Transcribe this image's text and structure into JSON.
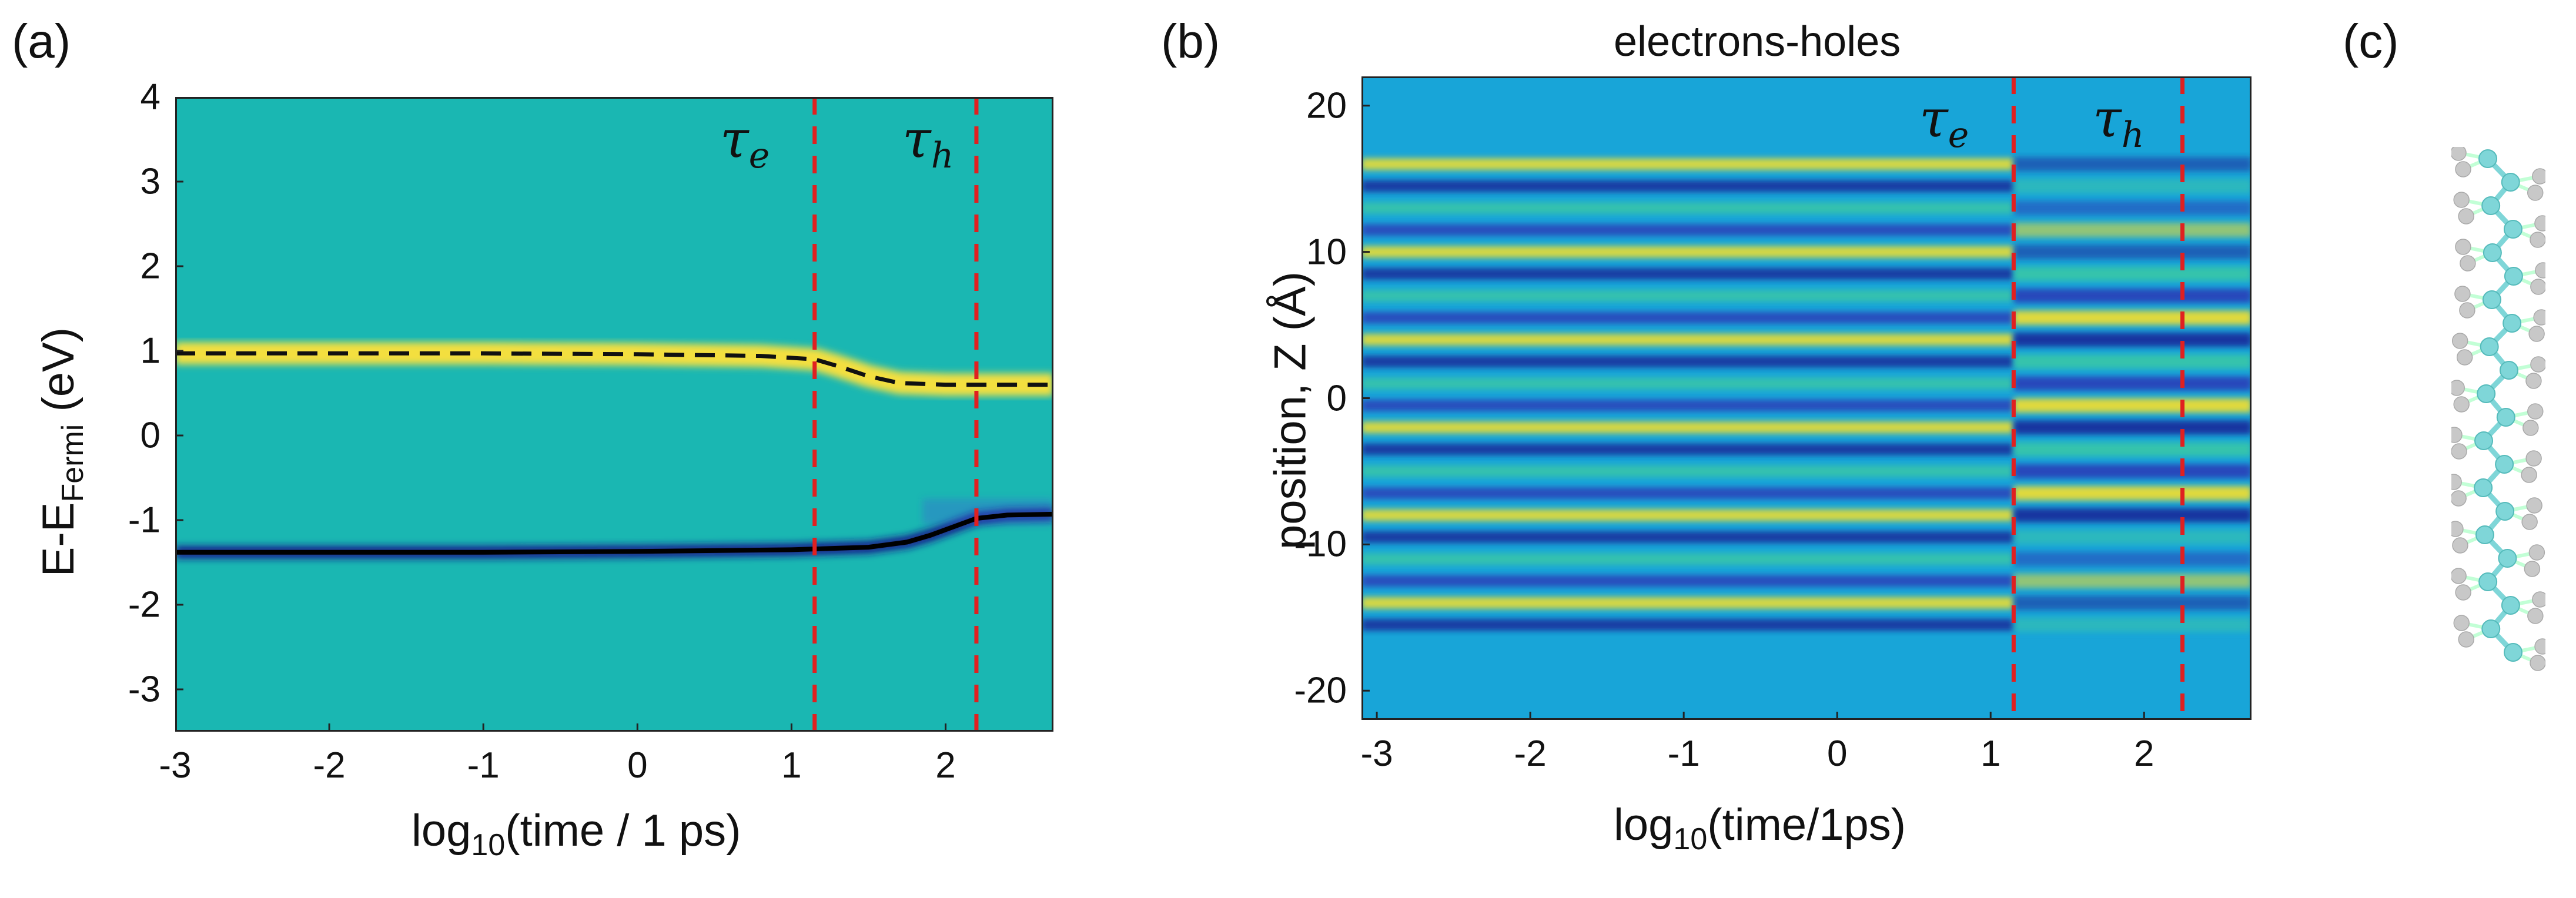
{
  "chart_data": [
    {
      "panel": "(a)",
      "type": "heatmap",
      "title": "",
      "xlabel": "log10(time / 1 ps)",
      "xlabel_parts": {
        "pre": "log",
        "sub": "10",
        "post": "(time / 1 ps)"
      },
      "ylabel_parts": {
        "pre": "E-E",
        "sub": "Fermi",
        "post": " (eV)"
      },
      "xlim": [
        -3,
        2.7
      ],
      "ylim": [
        -3.5,
        4
      ],
      "xticks": [
        "-3",
        "-2",
        "-1",
        "0",
        "1",
        "2"
      ],
      "yticks": [
        "4",
        "3",
        "2",
        "1",
        "0",
        "-1",
        "-2",
        "-3"
      ],
      "background_color": "#1ab7b2",
      "vlines": [
        {
          "x": 1.15,
          "label": "τe",
          "color": "#e02020"
        },
        {
          "x": 2.2,
          "label": "τh",
          "color": "#e02020"
        }
      ],
      "series": [
        {
          "name": "upper level (dashed)",
          "style": "dashed",
          "color": "#111111",
          "x": [
            -3,
            -1,
            0,
            0.8,
            1.15,
            1.3,
            1.5,
            1.7,
            2.0,
            2.2,
            2.7
          ],
          "y": [
            0.97,
            0.97,
            0.96,
            0.94,
            0.9,
            0.82,
            0.7,
            0.62,
            0.6,
            0.6,
            0.6
          ]
        },
        {
          "name": "lower level (solid)",
          "style": "solid",
          "color": "#000000",
          "x": [
            -3,
            -1,
            0,
            1,
            1.5,
            1.75,
            1.9,
            2.05,
            2.2,
            2.4,
            2.7
          ],
          "y": [
            -1.38,
            -1.38,
            -1.37,
            -1.35,
            -1.32,
            -1.26,
            -1.18,
            -1.08,
            -0.98,
            -0.94,
            -0.93
          ]
        }
      ]
    },
    {
      "panel": "(b)",
      "type": "heatmap",
      "title": "electrons-holes",
      "xlabel": "log10(time/1ps)",
      "xlabel_parts": {
        "pre": "log",
        "sub": "10",
        "post": "(time/1ps)"
      },
      "ylabel": "position, Z (Å)",
      "xlim": [
        -3.1,
        2.7
      ],
      "ylim": [
        -22,
        22
      ],
      "xticks": [
        "-3",
        "-2",
        "-1",
        "0",
        "1",
        "2"
      ],
      "yticks": [
        "20",
        "10",
        "0",
        "-10",
        "-20"
      ],
      "background_color": "#18a5d8",
      "vlines": [
        {
          "x": 1.15,
          "label": "τe",
          "color": "#e02020"
        },
        {
          "x": 2.25,
          "label": "τh",
          "color": "#e02020"
        }
      ],
      "band_positions": [
        16,
        14.5,
        13,
        11.5,
        10,
        8.5,
        7,
        5.5,
        4,
        2.5,
        1,
        -0.5,
        -2,
        -3.5,
        -5,
        -6.5,
        -8,
        -9.5,
        -11,
        -12.5,
        -14,
        -15.5
      ]
    }
  ],
  "panel_labels": {
    "a": "(a)",
    "b": "(b)",
    "c": "(c)"
  },
  "tau_e": {
    "symbol": "τ",
    "sub": "e"
  },
  "tau_h": {
    "symbol": "τ",
    "sub": "h"
  },
  "colors": {
    "yellow": "#ffe23a",
    "dark_blue": "#1a1a8c",
    "teal": "#1ab7b2",
    "blue": "#18a5d8",
    "molecule_c": "#7fd6d8",
    "molecule_h": "#c8c8c8"
  }
}
